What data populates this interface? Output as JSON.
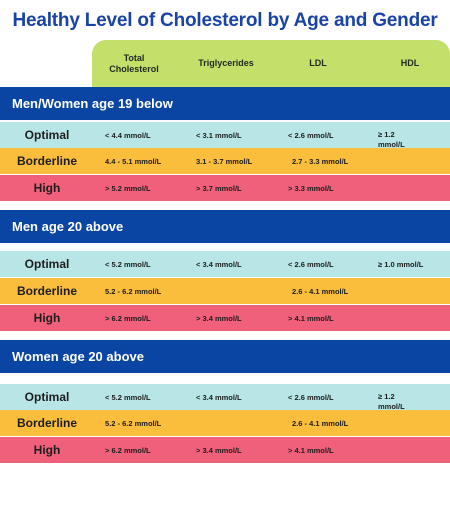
{
  "title": "Healthy Level of Cholesterol by Age and Gender",
  "columns": {
    "total_cholesterol": "Total Cholesterol",
    "triglycerides": "Triglycerides",
    "ldl": "LDL",
    "hdl": "HDL"
  },
  "colors": {
    "title": "#1a43a8",
    "header": "#c2e06a",
    "section": "#0a45a3",
    "optimal": "#b8e6e6",
    "borderline": "#fbbd3c",
    "high": "#f0607a"
  },
  "groups": [
    {
      "heading": "Men/Women age 19 below",
      "rows": [
        {
          "label": "Optimal",
          "total": "< 4.4 mmol/L",
          "trig": "< 3.1 mmol/L",
          "ldl": "< 2.6 mmol/L",
          "hdl": "≥ 1.2 mmol/L"
        },
        {
          "label": "Borderline",
          "total": "4.4 - 5.1 mmol/L",
          "trig": "3.1 - 3.7 mmol/L",
          "ldl": "2.7 - 3.3 mmol/L",
          "hdl": ""
        },
        {
          "label": "High",
          "total": "> 5.2 mmol/L",
          "trig": "> 3.7 mmol/L",
          "ldl": "> 3.3 mmol/L",
          "hdl": ""
        }
      ]
    },
    {
      "heading": "Men age 20 above",
      "rows": [
        {
          "label": "Optimal",
          "total": "< 5.2 mmol/L",
          "trig": "< 3.4 mmol/L",
          "ldl": "< 2.6 mmol/L",
          "hdl": "≥ 1.0 mmol/L"
        },
        {
          "label": "Borderline",
          "total": "5.2 - 6.2 mmol/L",
          "trig": "",
          "ldl": "2.6 - 4.1 mmol/L",
          "hdl": ""
        },
        {
          "label": "High",
          "total": "> 6.2 mmol/L",
          "trig": "> 3.4 mmol/L",
          "ldl": "> 4.1 mmol/L",
          "hdl": ""
        }
      ]
    },
    {
      "heading": "Women age 20 above",
      "rows": [
        {
          "label": "Optimal",
          "total": "< 5.2 mmol/L",
          "trig": "< 3.4 mmol/L",
          "ldl": "< 2.6 mmol/L",
          "hdl": "≥ 1.2 mmol/L"
        },
        {
          "label": "Borderline",
          "total": "5.2 - 6.2 mmol/L",
          "trig": "",
          "ldl": "2.6 - 4.1 mmol/L",
          "hdl": ""
        },
        {
          "label": "High",
          "total": "> 6.2 mmol/L",
          "trig": "> 3.4 mmol/L",
          "ldl": "> 4.1 mmol/L",
          "hdl": ""
        }
      ]
    }
  ]
}
